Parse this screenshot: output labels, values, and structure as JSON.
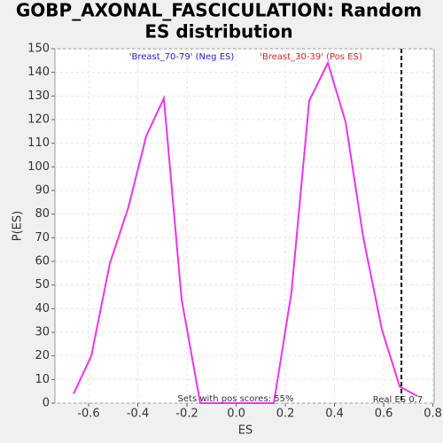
{
  "chart_data": {
    "type": "line",
    "title_lines": [
      "GOBP_AXONAL_FASCICULATION: Random",
      "ES distribution"
    ],
    "x_label": "ES",
    "y_label": "P(ES)",
    "neg_label": "'Breast_70-79' (Neg ES)",
    "pos_label": "'Breast_30-39' (Pos ES)",
    "neg_color": "#2222cc",
    "pos_color": "#dd2222",
    "annotation": "Sets with pos scores: 55%",
    "real_es_label": "Real ES 0.7",
    "real_es": 0.672,
    "x": [
      -0.661,
      -0.589,
      -0.514,
      -0.438,
      -0.366,
      -0.294,
      -0.222,
      -0.146,
      0.153,
      0.225,
      0.297,
      0.373,
      0.445,
      0.517,
      0.593,
      0.665,
      0.737
    ],
    "series": [
      {
        "color": "#ee33ee",
        "values": [
          4,
          20,
          59,
          83,
          113,
          129,
          44,
          0,
          0,
          47,
          128,
          144,
          119,
          70,
          31,
          7,
          3
        ]
      }
    ],
    "xlim": [
      -0.737,
      0.805
    ],
    "ylim": [
      0,
      150
    ],
    "xticks": [
      -0.6,
      -0.4,
      -0.2,
      {
        "value": 0,
        "label": "0.0"
      },
      0.2,
      0.4,
      0.6,
      0.8
    ],
    "yticks": [
      0,
      10,
      20,
      30,
      40,
      50,
      60,
      70,
      80,
      90,
      100,
      110,
      120,
      130,
      140,
      150
    ],
    "grid": true
  }
}
